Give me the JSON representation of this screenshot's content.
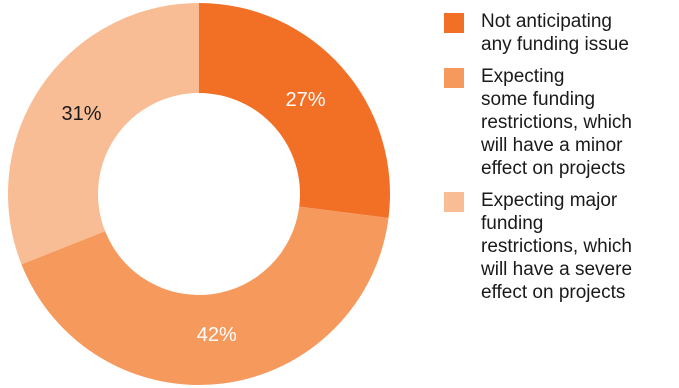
{
  "chart_data": {
    "type": "pie",
    "donut": true,
    "title": "",
    "categories": [
      "Not anticipating any funding issue",
      "Expecting some funding restrictions, which will have a minor effect on projects",
      "Expecting major funding restrictions, which will have a severe effect on projects"
    ],
    "values": [
      27,
      42,
      31
    ],
    "value_labels": [
      "27%",
      "42%",
      "31%"
    ],
    "colors": [
      "#f26f26",
      "#f5995c",
      "#f9bd95"
    ],
    "label_colors": [
      "#ffffff",
      "#ffffff",
      "#1a1a1a"
    ],
    "legend_position": "right",
    "legend_lines": [
      [
        "Not anticipating",
        "any funding issue"
      ],
      [
        "Expecting",
        "some funding",
        "restrictions, which",
        "will have a minor",
        "effect on projects"
      ],
      [
        "Expecting major",
        "funding",
        "restrictions, which",
        "will have a severe",
        "effect on projects"
      ]
    ]
  }
}
